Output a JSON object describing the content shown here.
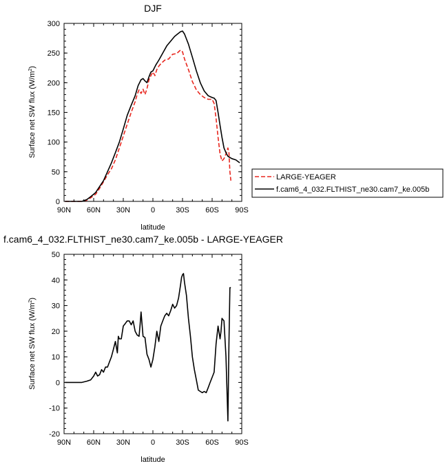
{
  "chart_data": [
    {
      "type": "line",
      "title": "DJF",
      "xlabel": "latitude",
      "ylabel": "Surface net SW flux (W/m",
      "ylabel_sup": "2",
      "ylabel_close": ")",
      "xlim": [
        90,
        -90
      ],
      "ylim": [
        0,
        300
      ],
      "xticks": [
        90,
        60,
        30,
        0,
        -30,
        -60,
        -90
      ],
      "xtick_labels": [
        "90N",
        "60N",
        "30N",
        "0",
        "30S",
        "60S",
        "90S"
      ],
      "yticks": [
        0,
        50,
        100,
        150,
        200,
        250,
        300
      ],
      "ytick_labels": [
        "0",
        "50",
        "100",
        "150",
        "200",
        "250",
        "300"
      ],
      "grid": false,
      "legend": "right",
      "series": [
        {
          "name": "LARGE-YEAGER",
          "color": "#e8261e",
          "dash": "dashed",
          "x": [
            89,
            80,
            72,
            67,
            63,
            58,
            54,
            50,
            46,
            42,
            38,
            34,
            30,
            26,
            22,
            18,
            16,
            14,
            12,
            10,
            8,
            6,
            4,
            2,
            0,
            -2,
            -4,
            -6,
            -8,
            -12,
            -16,
            -20,
            -24,
            -26,
            -28,
            -30,
            -32,
            -36,
            -40,
            -44,
            -48,
            -52,
            -56,
            -60,
            -62,
            -64,
            -66,
            -68,
            -70,
            -72,
            -74,
            -76,
            -77,
            -78,
            -79
          ],
          "y": [
            0,
            0,
            0,
            2,
            6,
            12,
            22,
            33,
            45,
            55,
            70,
            90,
            110,
            130,
            150,
            168,
            180,
            188,
            182,
            189,
            180,
            190,
            205,
            212,
            218,
            212,
            222,
            228,
            232,
            238,
            240,
            248,
            249,
            252,
            255,
            252,
            240,
            222,
            202,
            188,
            180,
            175,
            172,
            172,
            165,
            140,
            108,
            80,
            68,
            72,
            80,
            90,
            82,
            50,
            35
          ]
        },
        {
          "name": "f.cam6_4_032.FLTHIST_ne30.cam7_ke.005b",
          "color": "#000000",
          "dash": "solid",
          "x": [
            89,
            80,
            72,
            67,
            63,
            58,
            54,
            50,
            46,
            42,
            38,
            34,
            30,
            26,
            22,
            18,
            15,
            12,
            10,
            8,
            6,
            4,
            2,
            0,
            -3,
            -6,
            -10,
            -14,
            -18,
            -22,
            -25,
            -28,
            -30,
            -32,
            -36,
            -40,
            -44,
            -48,
            -52,
            -56,
            -60,
            -62,
            -64,
            -66,
            -68,
            -70,
            -72,
            -74,
            -76,
            -80,
            -84,
            -88
          ],
          "y": [
            0,
            0,
            0,
            3,
            8,
            15,
            25,
            35,
            50,
            65,
            82,
            100,
            122,
            145,
            162,
            178,
            195,
            205,
            207,
            203,
            200,
            210,
            218,
            220,
            230,
            238,
            250,
            262,
            270,
            278,
            282,
            286,
            287,
            282,
            265,
            243,
            220,
            200,
            186,
            178,
            175,
            174,
            170,
            150,
            128,
            108,
            90,
            82,
            76,
            72,
            70,
            65
          ]
        }
      ]
    },
    {
      "type": "line",
      "title": "f.cam6_4_032.FLTHIST_ne30.cam7_ke.005b - LARGE-YEAGER",
      "xlabel": "latitude",
      "ylabel": "Surface net SW flux (W/m",
      "ylabel_sup": "2",
      "ylabel_close": ")",
      "xlim": [
        90,
        -90
      ],
      "ylim": [
        -20,
        50
      ],
      "xticks": [
        90,
        60,
        30,
        0,
        -30,
        -60,
        -90
      ],
      "xtick_labels": [
        "90N",
        "60N",
        "30N",
        "0",
        "30S",
        "60S",
        "90S"
      ],
      "yticks": [
        -20,
        -10,
        0,
        10,
        20,
        30,
        40,
        50
      ],
      "ytick_labels": [
        "-20",
        "-10",
        "0",
        "10",
        "20",
        "30",
        "40",
        "50"
      ],
      "grid": false,
      "series": [
        {
          "color": "#000000",
          "dash": "solid",
          "x": [
            89,
            80,
            72,
            67,
            63,
            60,
            58,
            56,
            54,
            52,
            50,
            48,
            46,
            44,
            42,
            40,
            38,
            36,
            35,
            34,
            32,
            30,
            28,
            26,
            24,
            22,
            20,
            18,
            16,
            14,
            13,
            12,
            10,
            8,
            6,
            4,
            2,
            0,
            -2,
            -4,
            -6,
            -8,
            -10,
            -12,
            -14,
            -16,
            -18,
            -20,
            -22,
            -24,
            -26,
            -28,
            -29,
            -30,
            -31,
            -32,
            -34,
            -36,
            -38,
            -40,
            -42,
            -44,
            -46,
            -48,
            -50,
            -52,
            -54,
            -56,
            -58,
            -60,
            -62,
            -64,
            -66,
            -68,
            -69,
            -70,
            -72,
            -74,
            -76,
            -77,
            -78,
            -79
          ],
          "y": [
            0,
            0,
            0,
            0.5,
            1,
            2.5,
            4,
            2.5,
            3,
            5,
            4,
            6,
            6,
            8,
            10,
            13,
            16,
            11.5,
            18,
            17,
            17,
            22,
            23,
            24,
            24,
            22.5,
            24,
            20,
            18.5,
            18,
            22.5,
            27.5,
            18,
            17.5,
            11,
            9,
            6,
            9,
            14,
            20,
            16,
            22,
            24,
            26,
            27,
            26,
            28,
            30.5,
            29,
            30,
            33,
            38,
            41,
            42,
            42.5,
            39,
            34,
            25,
            18,
            10,
            5,
            1,
            -3,
            -3.5,
            -4,
            -3.5,
            -4,
            -2,
            0,
            2,
            4,
            15,
            22,
            17,
            20,
            25,
            24,
            10,
            -15,
            15,
            37,
            37
          ]
        }
      ]
    }
  ]
}
